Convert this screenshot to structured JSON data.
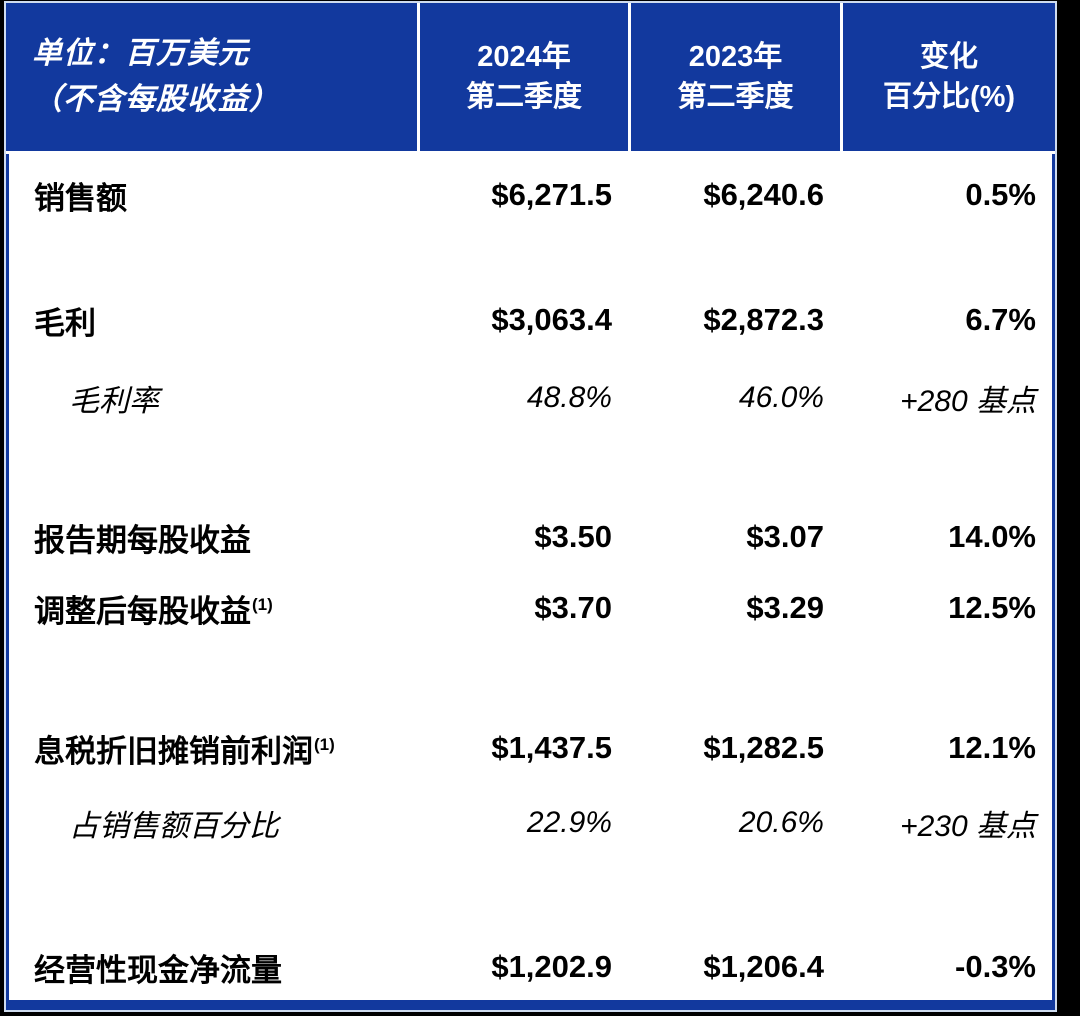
{
  "colors": {
    "accent_blue": "#12399E",
    "header_text": "#FFFFFF",
    "body_text": "#000000",
    "page_background": "#000000",
    "divider": "#FFFFFF"
  },
  "table": {
    "header": {
      "unit_label_line1": "单位：百万美元",
      "unit_label_line2": "（不含每股收益）",
      "columns": [
        {
          "line1": "2024年",
          "line2": "第二季度"
        },
        {
          "line1": "2023年",
          "line2": "第二季度"
        },
        {
          "line1": "变化",
          "line2": "百分比(%)"
        }
      ]
    },
    "rows": [
      {
        "label": "销售额",
        "sup": "",
        "q2_2024": "$6,271.5",
        "q2_2023": "$6,240.6",
        "change": "0.5%",
        "style": "main"
      },
      {
        "label": "毛利",
        "sup": "",
        "q2_2024": "$3,063.4",
        "q2_2023": "$2,872.3",
        "change": "6.7%",
        "style": "main"
      },
      {
        "label": "毛利率",
        "sup": "",
        "q2_2024": "48.8%",
        "q2_2023": "46.0%",
        "change": "+280 基点",
        "style": "sub"
      },
      {
        "label": "报告期每股收益",
        "sup": "",
        "q2_2024": "$3.50",
        "q2_2023": "$3.07",
        "change": "14.0%",
        "style": "main"
      },
      {
        "label": "调整后每股收益",
        "sup": "(1)",
        "q2_2024": "$3.70",
        "q2_2023": "$3.29",
        "change": "12.5%",
        "style": "main"
      },
      {
        "label": "息税折旧摊销前利润",
        "sup": "(1)",
        "q2_2024": "$1,437.5",
        "q2_2023": "$1,282.5",
        "change": "12.1%",
        "style": "main"
      },
      {
        "label": "占销售额百分比",
        "sup": "",
        "q2_2024": "22.9%",
        "q2_2023": "20.6%",
        "change": "+230 基点",
        "style": "sub"
      },
      {
        "label": "经营性现金净流量",
        "sup": "",
        "q2_2024": "$1,202.9",
        "q2_2023": "$1,206.4",
        "change": "-0.3%",
        "style": "main"
      }
    ]
  }
}
